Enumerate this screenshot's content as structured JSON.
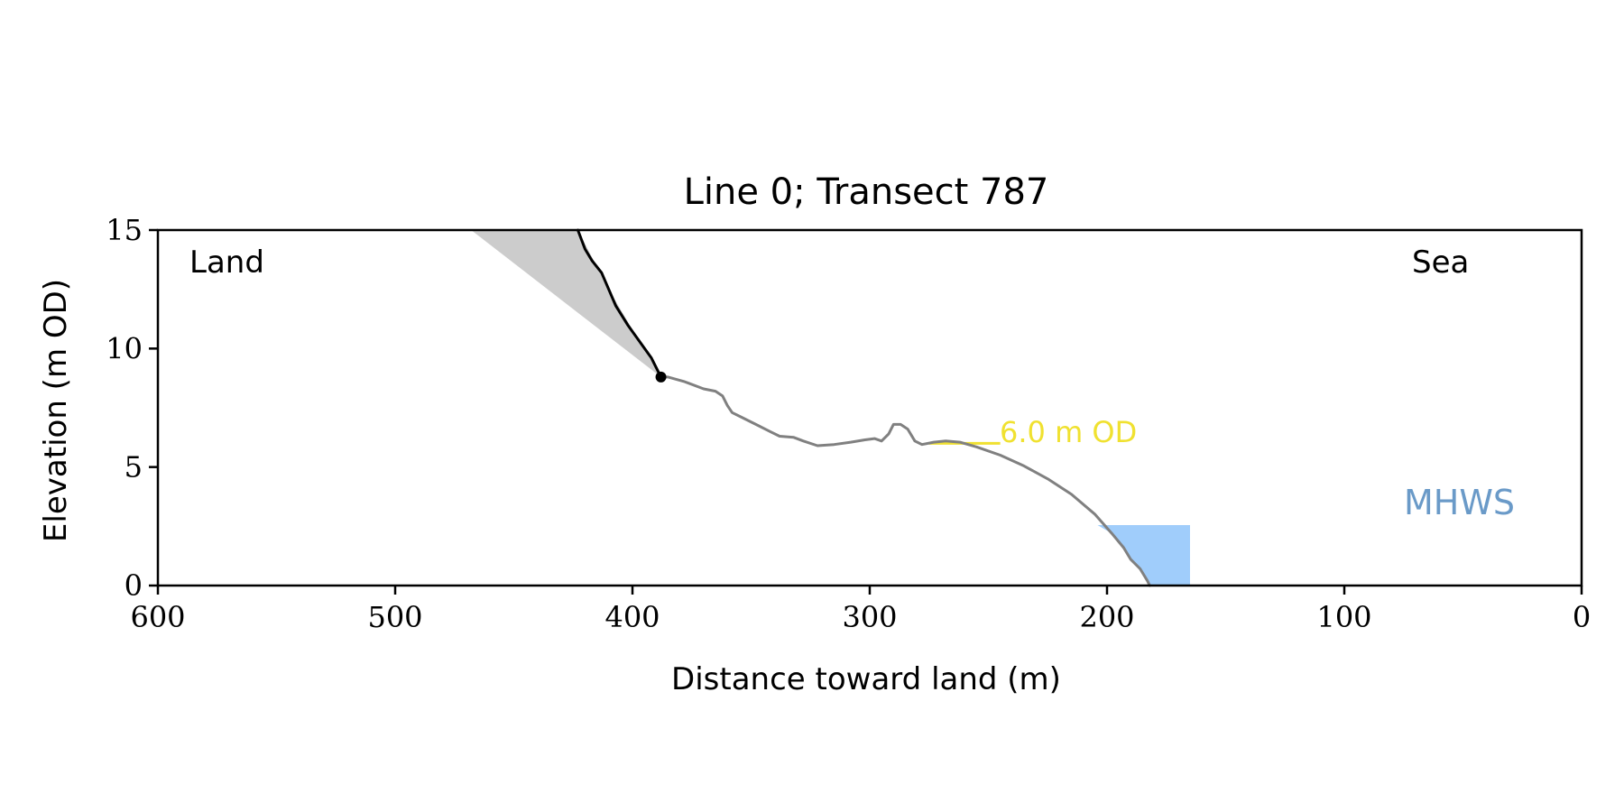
{
  "chart_data": {
    "type": "line",
    "title": "Line 0; Transect 787",
    "xlabel": "Distance toward land (m)",
    "ylabel": "Elevation (m OD)",
    "xlim": [
      600,
      0
    ],
    "ylim": [
      0,
      15
    ],
    "x_ticks": [
      600,
      500,
      400,
      300,
      200,
      100,
      0
    ],
    "y_ticks": [
      0,
      5,
      10,
      15
    ],
    "grid": false,
    "corner_labels": {
      "left": "Land",
      "right": "Sea"
    },
    "series": [
      {
        "role": "profile",
        "color": "#808080",
        "points": [
          [
            388,
            8.8
          ],
          [
            385,
            8.8
          ],
          [
            378,
            8.6
          ],
          [
            370,
            8.3
          ],
          [
            365,
            8.2
          ],
          [
            362,
            8.0
          ],
          [
            360,
            7.6
          ],
          [
            358,
            7.3
          ],
          [
            354,
            7.1
          ],
          [
            348,
            6.8
          ],
          [
            342,
            6.5
          ],
          [
            338,
            6.3
          ],
          [
            332,
            6.25
          ],
          [
            328,
            6.1
          ],
          [
            322,
            5.9
          ],
          [
            315,
            5.95
          ],
          [
            308,
            6.05
          ],
          [
            302,
            6.15
          ],
          [
            298,
            6.2
          ],
          [
            295,
            6.1
          ],
          [
            292,
            6.4
          ],
          [
            290,
            6.8
          ],
          [
            287,
            6.8
          ],
          [
            284,
            6.6
          ],
          [
            281,
            6.1
          ],
          [
            278,
            5.95
          ],
          [
            273,
            6.05
          ],
          [
            268,
            6.1
          ],
          [
            262,
            6.05
          ],
          [
            255,
            5.85
          ],
          [
            245,
            5.5
          ],
          [
            235,
            5.05
          ],
          [
            225,
            4.5
          ],
          [
            215,
            3.85
          ],
          [
            205,
            3.0
          ],
          [
            198,
            2.2
          ],
          [
            193,
            1.6
          ],
          [
            190,
            1.1
          ],
          [
            186,
            0.7
          ],
          [
            183,
            0.2
          ],
          [
            182,
            0.0
          ]
        ]
      },
      {
        "role": "cliff",
        "color": "#000000",
        "points": [
          [
            423,
            15.0
          ],
          [
            420,
            14.2
          ],
          [
            417,
            13.7
          ],
          [
            413,
            13.2
          ],
          [
            410,
            12.5
          ],
          [
            407,
            11.8
          ],
          [
            402,
            11.0
          ],
          [
            397,
            10.3
          ],
          [
            392,
            9.6
          ],
          [
            388,
            8.8
          ]
        ]
      }
    ],
    "markers": [
      {
        "label": "cliff toe",
        "x": 388,
        "y": 8.8,
        "color": "#000000"
      }
    ],
    "shaded_areas": [
      {
        "label": "cliff wedge",
        "color": "#cccccc",
        "polygon": [
          [
            468,
            15.0
          ],
          [
            423,
            15.0
          ],
          [
            410,
            12.5
          ],
          [
            397,
            10.3
          ],
          [
            388,
            8.8
          ]
        ]
      },
      {
        "label": "MHWS box",
        "color": "#a0cdfb",
        "polygon": [
          [
            165,
            2.55
          ],
          [
            204,
            2.55
          ],
          [
            198,
            2.2
          ],
          [
            193,
            1.6
          ],
          [
            190,
            1.1
          ],
          [
            186,
            0.7
          ],
          [
            183,
            0.2
          ],
          [
            182,
            0.0
          ],
          [
            165,
            0.0
          ]
        ]
      }
    ],
    "annotations": [
      {
        "text": "6.0 m OD",
        "color": "#f0e130",
        "line_x": [
          275,
          245
        ],
        "y": 6.0
      },
      {
        "text": "MHWS",
        "color": "#6a9ac8",
        "x": 52,
        "y": 3.4
      }
    ]
  }
}
